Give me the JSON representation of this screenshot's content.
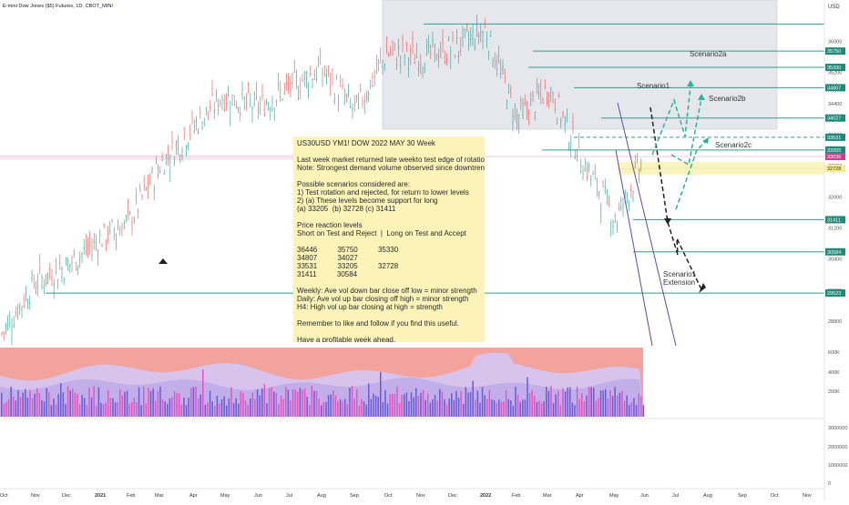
{
  "symbol_title": "E-mini Dow Jones ($5) Futures, 1D, CBOT_MINI",
  "price_scale": {
    "currency": "USD",
    "levels": [
      "36000",
      "35200",
      "34400",
      "33600",
      "32800",
      "32000",
      "31200",
      "30400",
      "29600",
      "28800"
    ],
    "highlighted": [
      {
        "label": "35750",
        "value": 35750
      },
      {
        "label": "35330",
        "value": 35330
      },
      {
        "label": "34807",
        "value": 34807
      },
      {
        "label": "34027",
        "value": 34027
      },
      {
        "label": "33531",
        "value": 33531
      },
      {
        "label": "33205",
        "value": 33205
      },
      {
        "label": "33036",
        "value": 33036
      },
      {
        "label": "32728",
        "value": 32728
      },
      {
        "label": "31411",
        "value": 31411
      },
      {
        "label": "30584",
        "value": 30584
      },
      {
        "label": "29523",
        "value": 29523
      }
    ]
  },
  "volume_scale": {
    "levels": [
      "600K",
      "400K",
      "200K"
    ],
    "lower_levels": [
      "3000000",
      "2000000",
      "1000000",
      "0"
    ]
  },
  "time_axis": {
    "labels": [
      "Oct",
      "Nov",
      "Dec",
      "2021",
      "Feb",
      "Mar",
      "Apr",
      "May",
      "Jun",
      "Jul",
      "Aug",
      "Sep",
      "Oct",
      "Nov",
      "Dec",
      "2022",
      "Feb",
      "Mar",
      "Apr",
      "May",
      "Jun",
      "Jul",
      "Aug",
      "Sep",
      "Oct",
      "Nov"
    ],
    "bold": [
      "2021",
      "2022"
    ]
  },
  "annotations": {
    "scenario1": "Scenario1",
    "scenario2a": "Scenario2a",
    "scenario2b": "Scenario2b",
    "scenario2c": "Scenario2c",
    "scenario1_ext_line1": "Scenario1",
    "scenario1_ext_line2": "Extension"
  },
  "note_lines": [
    "US30USD YM1! DOW 2022 MAY 30 Week",
    "",
    "Last week market returned late weekto test edge of rotation zone.",
    "Note: Strongest demand volume observed since downtrend.",
    "",
    "Possible scenarios considered are:",
    "1) Test rotation and rejected, for return to lower levels",
    "2) (a) These levels become support for long",
    "(a) 33205  (b) 32728 (c) 31411",
    "",
    "Price reaction levels",
    "Short on Test and Reject  |  Long on Test and Accept",
    "",
    "36446          35750          35330",
    "34807          34027",
    "33531          33205          32728",
    "31411          30584",
    "",
    "Weekly: Ave vol down bar close off low = minor strength",
    "Daily: Ave vol up bar closing off high = minor strength",
    "H4: High vol up bar closing at high = strength",
    "",
    "Remember to like and follow if you find this useful.",
    "",
    "Have a profitable week ahead."
  ],
  "colors": {
    "level_line": "#2e9e8e",
    "level_label_bg": "#1f8a77",
    "highlight_label_bg": "#f6ec86",
    "rotation_zone": "#e6e7ec",
    "note_bg": "#fbf3b8",
    "volume_area": "#f2a39c",
    "volume_band": "#d8c3ec",
    "volume_band_dark": "#b9a6ea",
    "bar_up": "#6a5bd6",
    "bar_down": "#e455c2",
    "trend_line": "#5b4ea6"
  },
  "chart_data": {
    "type": "candlestick",
    "title": "E-mini Dow Jones ($5) Futures, 1D, CBOT_MINI",
    "ylim": [
      28400,
      36900
    ],
    "horizontal_levels": [
      36446,
      35750,
      35330,
      34807,
      34027,
      33531,
      33205,
      33036,
      32728,
      31411,
      30584,
      29523
    ],
    "rotation_zone": {
      "from": "2021-10",
      "to": "2022-09",
      "low": 33600,
      "high": 36900
    },
    "approx_price_path": [
      {
        "x": "2020-10",
        "y": 28400
      },
      {
        "x": "2020-11",
        "y": 29800
      },
      {
        "x": "2020-12",
        "y": 30200
      },
      {
        "x": "2021-01",
        "y": 30900
      },
      {
        "x": "2021-02",
        "y": 31400
      },
      {
        "x": "2021-03",
        "y": 32800
      },
      {
        "x": "2021-04",
        "y": 33800
      },
      {
        "x": "2021-05",
        "y": 34600
      },
      {
        "x": "2021-06",
        "y": 34300
      },
      {
        "x": "2021-07",
        "y": 34800
      },
      {
        "x": "2021-08",
        "y": 35300
      },
      {
        "x": "2021-09",
        "y": 34200
      },
      {
        "x": "2021-10",
        "y": 35700
      },
      {
        "x": "2021-11",
        "y": 35600
      },
      {
        "x": "2021-12",
        "y": 35800
      },
      {
        "x": "2022-01",
        "y": 36300
      },
      {
        "x": "2022-02",
        "y": 34000
      },
      {
        "x": "2022-03",
        "y": 34800
      },
      {
        "x": "2022-04",
        "y": 33000
      },
      {
        "x": "2022-05",
        "y": 31400
      },
      {
        "x": "2022-05-30",
        "y": 32900
      }
    ],
    "volume_ylim": [
      0,
      650000
    ]
  }
}
